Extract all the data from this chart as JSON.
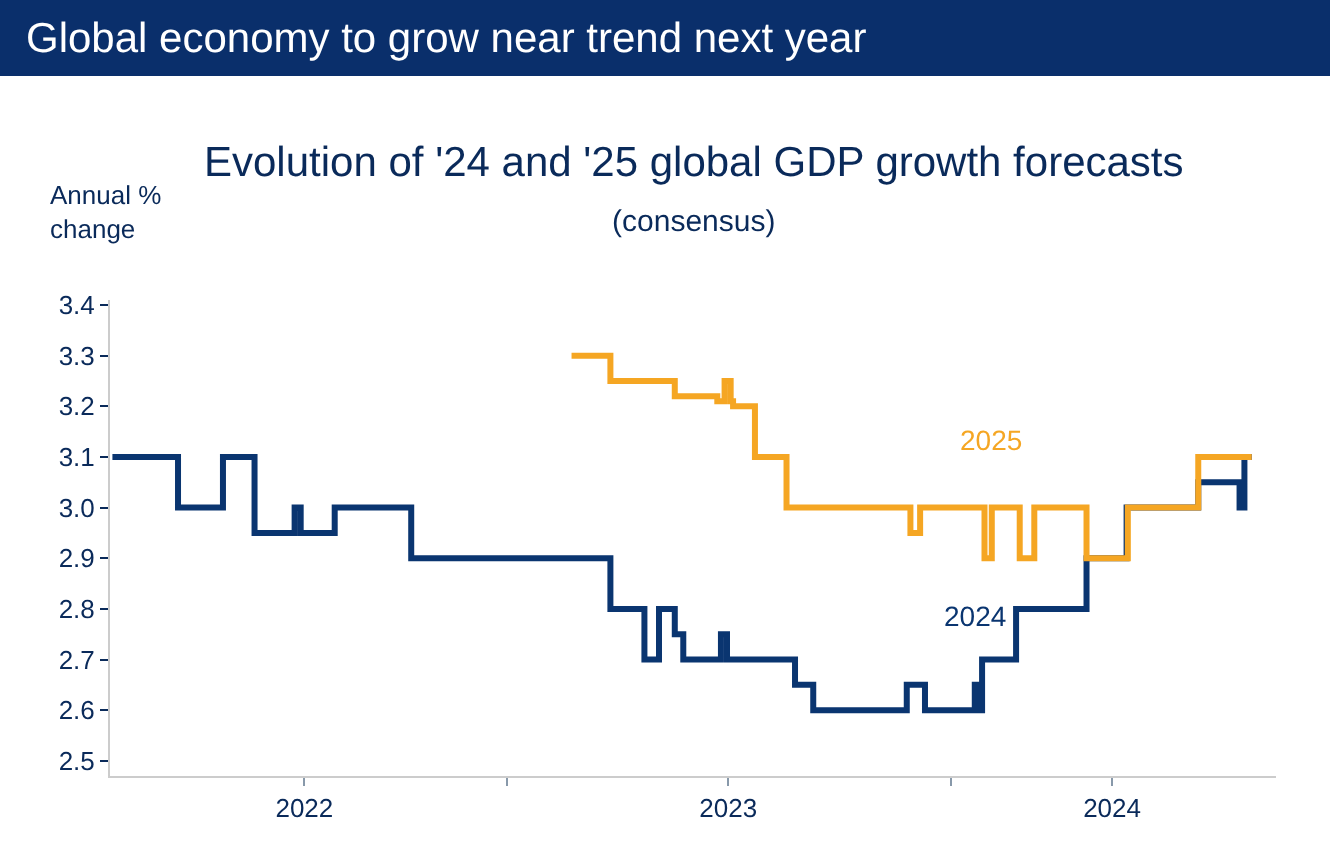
{
  "chart_data": {
    "type": "step",
    "title": "Global economy to grow near trend next year",
    "subtitle": "Evolution of '24 and '25 global GDP growth forecasts\n(consensus)",
    "ylabel": "Annual %\nchange",
    "series": [
      {
        "name": "2024",
        "color": "#0a3570",
        "x": [
          "2022-02-10",
          "2022-04-05",
          "2022-05-12",
          "2022-06-07",
          "2022-07-10",
          "2022-07-15",
          "2022-08-12",
          "2022-10-14",
          "2023-03-27",
          "2023-04-24",
          "2023-05-06",
          "2023-05-19",
          "2023-05-26",
          "2023-06-26",
          "2023-07-01",
          "2023-08-26",
          "2023-09-10",
          "2023-11-26",
          "2023-12-11",
          "2024-01-21",
          "2024-01-24",
          "2024-01-27",
          "2024-02-24",
          "2024-04-22",
          "2024-05-25",
          "2024-07-23",
          "2024-08-26",
          "2024-08-30",
          "2024-09-05"
        ],
        "values": [
          3.1,
          3.0,
          3.1,
          2.95,
          3.0,
          2.95,
          3.0,
          2.9,
          2.8,
          2.7,
          2.8,
          2.75,
          2.7,
          2.75,
          2.7,
          2.65,
          2.6,
          2.65,
          2.6,
          2.65,
          2.6,
          2.7,
          2.8,
          2.9,
          3.0,
          3.05,
          3.0,
          3.1,
          3.1
        ]
      },
      {
        "name": "2025",
        "color": "#f5a623",
        "x": [
          "2023-02-23",
          "2023-03-27",
          "2023-05-19",
          "2023-06-23",
          "2023-06-29",
          "2023-07-04",
          "2023-07-06",
          "2023-07-24",
          "2023-08-19",
          "2023-11-29",
          "2023-12-07",
          "2024-01-29",
          "2024-02-04",
          "2024-02-27",
          "2024-03-10",
          "2024-04-22",
          "2024-05-26",
          "2024-07-23",
          "2024-09-05"
        ],
        "values": [
          3.3,
          3.25,
          3.22,
          3.21,
          3.25,
          3.21,
          3.2,
          3.1,
          3.0,
          2.95,
          3.0,
          2.9,
          3.0,
          2.9,
          3.0,
          2.9,
          3.0,
          3.1,
          3.1
        ]
      }
    ],
    "xlim": [
      "2022-02-08",
      "2024-09-25"
    ],
    "xticks": [
      {
        "value": "2022-07-18",
        "label": "2022"
      },
      {
        "value": "2023-01-01",
        "label": null
      },
      {
        "value": "2023-07-02",
        "label": "2023"
      },
      {
        "value": "2024-01-01",
        "label": null
      },
      {
        "value": "2024-05-13",
        "label": "2024"
      }
    ],
    "ylim": [
      2.47,
      3.41
    ],
    "yticks": [
      2.5,
      2.6,
      2.7,
      2.8,
      2.9,
      {
        "value": 3.0,
        "label": "3.0"
      },
      3.1,
      3.2,
      3.3,
      3.4
    ],
    "grid": false,
    "legend": false,
    "marker": "none",
    "line_style": "solid"
  }
}
